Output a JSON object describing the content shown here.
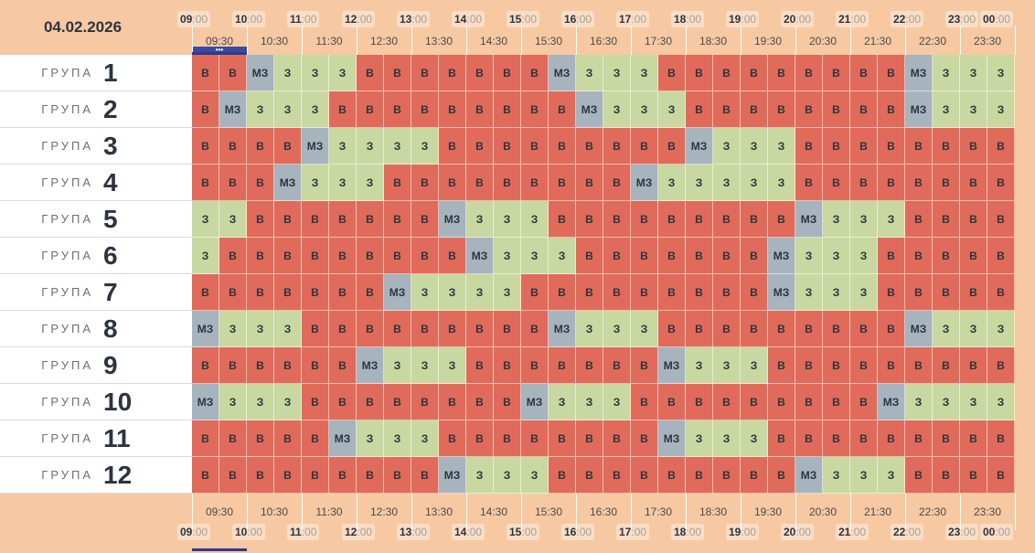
{
  "date": "04.02.2026",
  "group_word": "ГРУПА",
  "hours": [
    "09",
    "10",
    "11",
    "12",
    "13",
    "14",
    "15",
    "16",
    "17",
    "18",
    "19",
    "20",
    "21",
    "22",
    "23",
    "00"
  ],
  "minute_suffix": ":00",
  "half_hours": [
    "09:30",
    "10:30",
    "11:30",
    "12:30",
    "13:30",
    "14:30",
    "15:30",
    "16:30",
    "17:30",
    "18:30",
    "19:30",
    "20:30",
    "21:30",
    "22:30",
    "23:30"
  ],
  "status_labels": {
    "B": "В",
    "Z": "З",
    "MZ": "МЗ"
  },
  "status_colors": {
    "B": "#e06b5a",
    "Z": "#c9d8a0",
    "MZ": "#a7b4be"
  },
  "current_indicator_symbol": "•••",
  "groups": [
    {
      "number": "1",
      "slots": [
        "B",
        "B",
        "MZ",
        "Z",
        "Z",
        "Z",
        "B",
        "B",
        "B",
        "B",
        "B",
        "B",
        "B",
        "MZ",
        "Z",
        "Z",
        "Z",
        "B",
        "B",
        "B",
        "B",
        "B",
        "B",
        "B",
        "B",
        "B",
        "MZ",
        "Z",
        "Z",
        "Z"
      ]
    },
    {
      "number": "2",
      "slots": [
        "B",
        "MZ",
        "Z",
        "Z",
        "Z",
        "B",
        "B",
        "B",
        "B",
        "B",
        "B",
        "B",
        "B",
        "B",
        "MZ",
        "Z",
        "Z",
        "Z",
        "B",
        "B",
        "B",
        "B",
        "B",
        "B",
        "B",
        "B",
        "MZ",
        "Z",
        "Z",
        "Z"
      ]
    },
    {
      "number": "3",
      "slots": [
        "B",
        "B",
        "B",
        "B",
        "MZ",
        "Z",
        "Z",
        "Z",
        "Z",
        "B",
        "B",
        "B",
        "B",
        "B",
        "B",
        "B",
        "B",
        "B",
        "MZ",
        "Z",
        "Z",
        "Z",
        "B",
        "B",
        "B",
        "B",
        "B",
        "B",
        "B",
        "B"
      ]
    },
    {
      "number": "4",
      "slots": [
        "B",
        "B",
        "B",
        "MZ",
        "Z",
        "Z",
        "Z",
        "B",
        "B",
        "B",
        "B",
        "B",
        "B",
        "B",
        "B",
        "B",
        "MZ",
        "Z",
        "Z",
        "Z",
        "Z",
        "Z",
        "B",
        "B",
        "B",
        "B",
        "B",
        "B",
        "B",
        "B"
      ]
    },
    {
      "number": "5",
      "slots": [
        "Z",
        "Z",
        "B",
        "B",
        "B",
        "B",
        "B",
        "B",
        "B",
        "MZ",
        "Z",
        "Z",
        "Z",
        "B",
        "B",
        "B",
        "B",
        "B",
        "B",
        "B",
        "B",
        "B",
        "MZ",
        "Z",
        "Z",
        "Z",
        "B",
        "B",
        "B",
        "B"
      ]
    },
    {
      "number": "6",
      "slots": [
        "Z",
        "B",
        "B",
        "B",
        "B",
        "B",
        "B",
        "B",
        "B",
        "B",
        "MZ",
        "Z",
        "Z",
        "Z",
        "B",
        "B",
        "B",
        "B",
        "B",
        "B",
        "B",
        "MZ",
        "Z",
        "Z",
        "Z",
        "B",
        "B",
        "B",
        "B",
        "B"
      ]
    },
    {
      "number": "7",
      "slots": [
        "B",
        "B",
        "B",
        "B",
        "B",
        "B",
        "B",
        "MZ",
        "Z",
        "Z",
        "Z",
        "Z",
        "B",
        "B",
        "B",
        "B",
        "B",
        "B",
        "B",
        "B",
        "B",
        "MZ",
        "Z",
        "Z",
        "Z",
        "B",
        "B",
        "B",
        "B",
        "B"
      ]
    },
    {
      "number": "8",
      "slots": [
        "MZ",
        "Z",
        "Z",
        "Z",
        "B",
        "B",
        "B",
        "B",
        "B",
        "B",
        "B",
        "B",
        "B",
        "MZ",
        "Z",
        "Z",
        "Z",
        "B",
        "B",
        "B",
        "B",
        "B",
        "B",
        "B",
        "B",
        "B",
        "MZ",
        "Z",
        "Z",
        "Z"
      ]
    },
    {
      "number": "9",
      "slots": [
        "B",
        "B",
        "B",
        "B",
        "B",
        "B",
        "MZ",
        "Z",
        "Z",
        "Z",
        "B",
        "B",
        "B",
        "B",
        "B",
        "B",
        "B",
        "MZ",
        "Z",
        "Z",
        "Z",
        "B",
        "B",
        "B",
        "B",
        "B",
        "B",
        "B",
        "B",
        "B"
      ]
    },
    {
      "number": "10",
      "slots": [
        "MZ",
        "Z",
        "Z",
        "Z",
        "B",
        "B",
        "B",
        "B",
        "B",
        "B",
        "B",
        "B",
        "MZ",
        "Z",
        "Z",
        "Z",
        "B",
        "B",
        "B",
        "B",
        "B",
        "B",
        "B",
        "B",
        "B",
        "MZ",
        "Z",
        "Z",
        "Z",
        "Z"
      ]
    },
    {
      "number": "11",
      "slots": [
        "B",
        "B",
        "B",
        "B",
        "B",
        "MZ",
        "Z",
        "Z",
        "Z",
        "B",
        "B",
        "B",
        "B",
        "B",
        "B",
        "B",
        "B",
        "MZ",
        "Z",
        "Z",
        "Z",
        "B",
        "B",
        "B",
        "B",
        "B",
        "B",
        "B",
        "B",
        "B"
      ]
    },
    {
      "number": "12",
      "slots": [
        "B",
        "B",
        "B",
        "B",
        "B",
        "B",
        "B",
        "B",
        "B",
        "MZ",
        "Z",
        "Z",
        "Z",
        "B",
        "B",
        "B",
        "B",
        "B",
        "B",
        "B",
        "B",
        "B",
        "MZ",
        "Z",
        "Z",
        "Z",
        "B",
        "B",
        "B",
        "B"
      ]
    }
  ]
}
